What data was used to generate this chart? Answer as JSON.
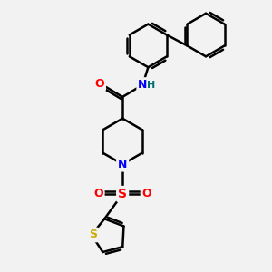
{
  "bg_color": "#f2f2f2",
  "bond_color": "#000000",
  "bond_width": 1.8,
  "atom_colors": {
    "N": "#0000ff",
    "O": "#ff0000",
    "S_thiophene": "#ccaa00",
    "S_sulfonyl": "#ff0000",
    "H": "#007070",
    "C": "#000000"
  },
  "figsize": [
    3.0,
    3.0
  ],
  "dpi": 100
}
